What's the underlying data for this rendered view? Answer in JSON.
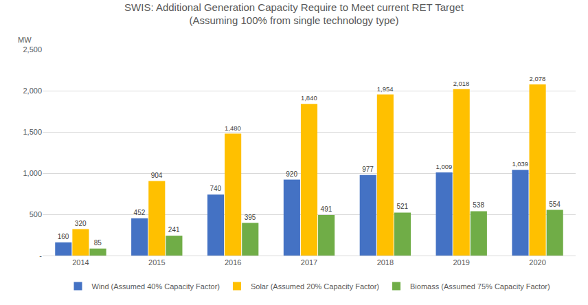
{
  "chart_data": {
    "type": "bar",
    "title": "SWIS: Additional Generation Capacity Require to Meet current RET Target",
    "subtitle": "(Assuming 100% from single technology type)",
    "ylabel": "MW",
    "categories": [
      "2014",
      "2015",
      "2016",
      "2017",
      "2018",
      "2019",
      "2020"
    ],
    "series": [
      {
        "name": "Wind (Assumed 40% Capacity Factor)",
        "color": "#4472c4",
        "values": [
          160,
          452,
          740,
          920,
          977,
          1009,
          1039
        ],
        "value_labels": [
          "160",
          "452",
          "740",
          "920",
          "977",
          "1,009",
          "1,039"
        ]
      },
      {
        "name": "Solar (Assumed 20% Capacity Factor)",
        "color": "#ffc000",
        "values": [
          320,
          904,
          1480,
          1840,
          1954,
          2018,
          2078
        ],
        "value_labels": [
          "320",
          "904",
          "1,480",
          "1,840",
          "1,954",
          "2,018",
          "2,078"
        ]
      },
      {
        "name": "Biomass (Assumed 75% Capacity Factor)",
        "color": "#70ad47",
        "values": [
          85,
          241,
          395,
          491,
          521,
          538,
          554
        ]
      }
    ],
    "ylim": [
      0,
      2500
    ],
    "yticks": [
      {
        "value": 0,
        "label": "-"
      },
      500,
      {
        "value": 1000,
        "label": "1,000"
      },
      {
        "value": 1500,
        "label": "1,500"
      },
      {
        "value": 2000,
        "label": "2,000"
      },
      {
        "value": 2500,
        "label": "2,500"
      }
    ],
    "grid": true,
    "data_labels": true,
    "legend": "bottom"
  }
}
